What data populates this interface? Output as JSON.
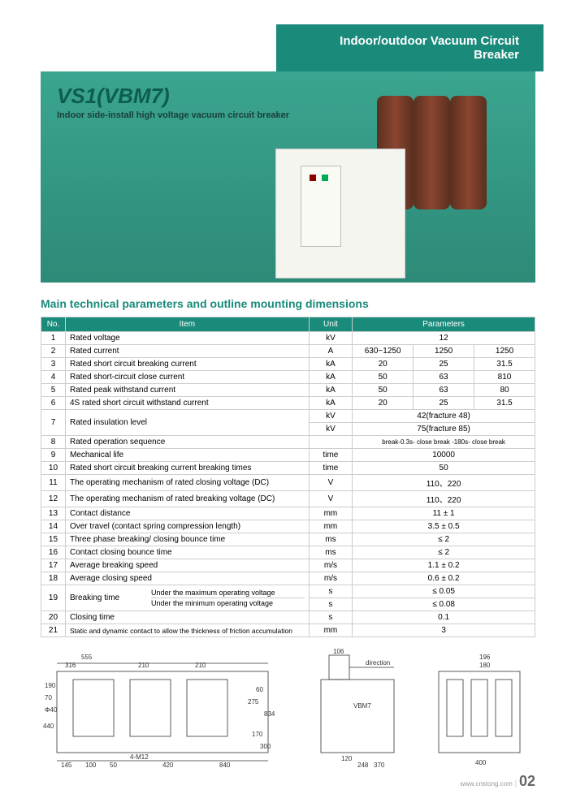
{
  "header": {
    "title": "Indoor/outdoor Vacuum Circuit Breaker"
  },
  "hero": {
    "title": "VS1(VBM7)",
    "subtitle": "Indoor side-install high voltage vacuum circuit breaker"
  },
  "section_title": "Main technical parameters and outline mounting dimensions",
  "table": {
    "headers": {
      "no": "No.",
      "item": "Item",
      "unit": "Unit",
      "params": "Parameters"
    },
    "rows": [
      {
        "n": "1",
        "item": "Rated voltage",
        "unit": "kV",
        "p": [
          "12"
        ],
        "span": 3
      },
      {
        "n": "2",
        "item": "Rated current",
        "unit": "A",
        "p": [
          "630~1250",
          "1250",
          "1250"
        ]
      },
      {
        "n": "3",
        "item": "Rated short circuit breaking current",
        "unit": "kA",
        "p": [
          "20",
          "25",
          "31.5"
        ]
      },
      {
        "n": "4",
        "item": "Rated short-circuit close current",
        "unit": "kA",
        "p": [
          "50",
          "63",
          "810"
        ]
      },
      {
        "n": "5",
        "item": "Rated peak withstand current",
        "unit": "kA",
        "p": [
          "50",
          "63",
          "80"
        ]
      },
      {
        "n": "6",
        "item": "4S rated short circuit withstand current",
        "unit": "kA",
        "p": [
          "20",
          "25",
          "31.5"
        ]
      },
      {
        "n": "7",
        "item": "Rated insulation level",
        "unit": "kV",
        "p": [
          "42(fracture 48)"
        ],
        "span": 3,
        "extra_unit": "kV",
        "extra_p": "75(fracture 85)"
      },
      {
        "n": "8",
        "item": "Rated operation sequence",
        "unit": "",
        "p": [
          "break-0.3s- close break -180s- close break"
        ],
        "span": 3
      },
      {
        "n": "9",
        "item": "Mechanical life",
        "unit": "time",
        "p": [
          "10000"
        ],
        "span": 3
      },
      {
        "n": "10",
        "item": "Rated short circuit breaking current breaking times",
        "unit": "time",
        "p": [
          "50"
        ],
        "span": 3
      },
      {
        "n": "11",
        "item": "The operating mechanism of rated closing voltage (DC)",
        "unit": "V",
        "p": [
          "110、220"
        ],
        "span": 3
      },
      {
        "n": "12",
        "item": "The operating mechanism of rated breaking voltage (DC)",
        "unit": "V",
        "p": [
          "110、220"
        ],
        "span": 3
      },
      {
        "n": "13",
        "item": "Contact distance",
        "unit": "mm",
        "p": [
          "11 ± 1"
        ],
        "span": 3
      },
      {
        "n": "14",
        "item": "Over travel (contact spring compression length)",
        "unit": "mm",
        "p": [
          "3.5 ± 0.5"
        ],
        "span": 3
      },
      {
        "n": "15",
        "item": "Three phase breaking/ closing bounce time",
        "unit": "ms",
        "p": [
          "≤ 2"
        ],
        "span": 3
      },
      {
        "n": "16",
        "item": "Contact closing bounce time",
        "unit": "ms",
        "p": [
          "≤ 2"
        ],
        "span": 3
      },
      {
        "n": "17",
        "item": "Average breaking  speed",
        "unit": "m/s",
        "p": [
          "1.1 ± 0.2"
        ],
        "span": 3
      },
      {
        "n": "18",
        "item": "Average closing  speed",
        "unit": "m/s",
        "p": [
          "0.6 ± 0.2"
        ],
        "span": 3
      },
      {
        "n": "19",
        "item": "Breaking time",
        "sub1": "Under the maximum operating voltage",
        "sub2": "Under the minimum operating voltage",
        "unit": "s",
        "p": [
          "≤ 0.05"
        ],
        "span": 3,
        "extra_unit": "s",
        "extra_p": "≤ 0.08"
      },
      {
        "n": "20",
        "item": "Closing time",
        "unit": "s",
        "p": [
          "0.1"
        ],
        "span": 3
      },
      {
        "n": "21",
        "item": "Static and dynamic contact to allow the thickness of friction accumulation",
        "unit": "mm",
        "p": [
          "3"
        ],
        "span": 3
      }
    ]
  },
  "diagrams": {
    "d1": {
      "dims": [
        "555",
        "316",
        "210",
        "210",
        "190",
        "70",
        "Φ40",
        "440",
        "145",
        "100",
        "50",
        "4-M12",
        "420",
        "840",
        "275",
        "60",
        "834",
        "170",
        "300"
      ]
    },
    "d2": {
      "dims": [
        "106",
        "direction",
        "VBM7",
        "120",
        "248",
        "370"
      ]
    },
    "d3": {
      "dims": [
        "196",
        "180",
        "400"
      ]
    }
  },
  "footer": {
    "url": "www.cnstong.com",
    "page": "02"
  }
}
